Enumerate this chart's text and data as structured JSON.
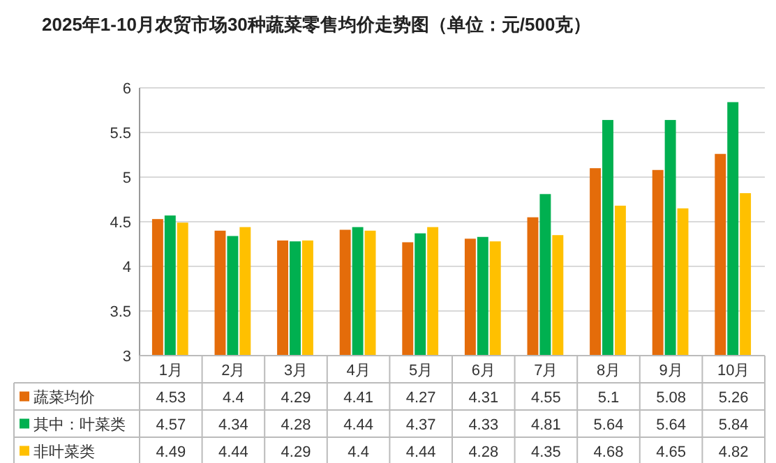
{
  "chart_data": {
    "type": "bar",
    "title": "2025年1-10月农贸市场30种蔬菜零售均价走势图（单位：元/500克）",
    "categories": [
      "1月",
      "2月",
      "3月",
      "4月",
      "5月",
      "6月",
      "7月",
      "8月",
      "9月",
      "10月"
    ],
    "series": [
      {
        "name": "蔬菜均价",
        "color": "#e46c0a",
        "values": [
          4.53,
          4.4,
          4.29,
          4.41,
          4.27,
          4.31,
          4.55,
          5.1,
          5.08,
          5.26
        ]
      },
      {
        "name": "其中：叶菜类",
        "color": "#00b050",
        "values": [
          4.57,
          4.34,
          4.28,
          4.44,
          4.37,
          4.33,
          4.81,
          5.64,
          5.64,
          5.84
        ]
      },
      {
        "name": "非叶菜类",
        "color": "#ffc000",
        "values": [
          4.49,
          4.44,
          4.29,
          4.4,
          4.44,
          4.28,
          4.35,
          4.68,
          4.65,
          4.82
        ]
      }
    ],
    "ylim": [
      3,
      6
    ],
    "yticks": [
      3,
      3.5,
      4,
      4.5,
      5,
      5.5,
      6
    ],
    "grid": "y",
    "legend": "bottom",
    "data_labels": true
  }
}
